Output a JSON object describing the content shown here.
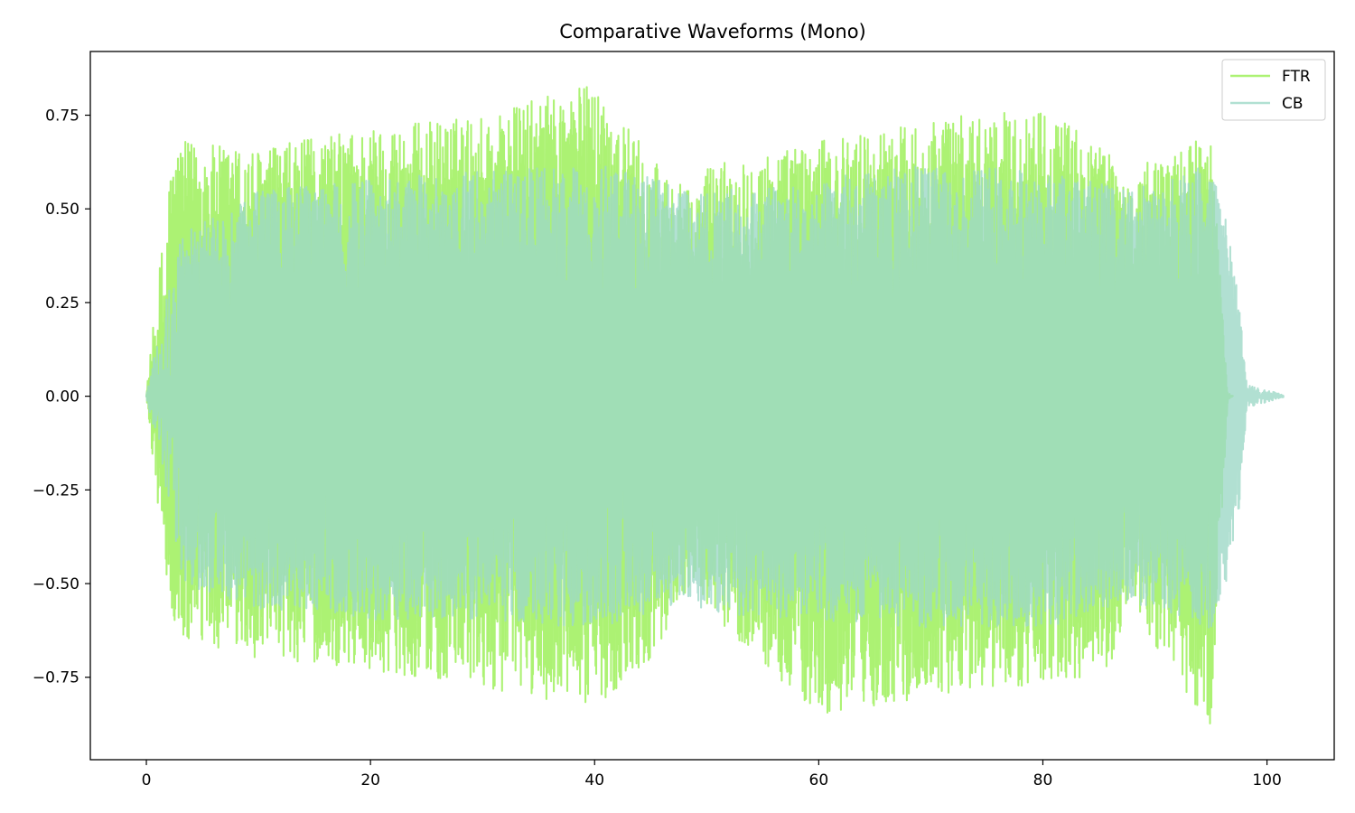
{
  "chart_data": {
    "type": "line",
    "title": "Comparative Waveforms (Mono)",
    "xlabel": "",
    "ylabel": "",
    "xlim": [
      -5,
      106
    ],
    "ylim": [
      -0.97,
      0.92
    ],
    "x_ticks": [
      0,
      20,
      40,
      60,
      80,
      100
    ],
    "x_tick_labels": [
      "0",
      "20",
      "40",
      "60",
      "80",
      "100"
    ],
    "y_ticks": [
      0.75,
      0.5,
      0.25,
      0.0,
      -0.25,
      -0.5,
      -0.75
    ],
    "y_tick_labels": [
      "0.75",
      "0.50",
      "0.25",
      "0.00",
      "−0.25",
      "−0.50",
      "−0.75"
    ],
    "grid": false,
    "legend_position": "top-right",
    "series": [
      {
        "name": "FTR",
        "color": "#9ef05a",
        "opacity": 0.85,
        "start": 0.0,
        "end": 97.0,
        "onset": 2.0,
        "offset": 96.5,
        "envelope": {
          "x": [
            0,
            2.0,
            3.0,
            10,
            20,
            30,
            40,
            45,
            49,
            50,
            60,
            70,
            80,
            86,
            88,
            89,
            95,
            96.5,
            97.0
          ],
          "max": [
            0.01,
            0.59,
            0.68,
            0.66,
            0.72,
            0.75,
            0.84,
            0.64,
            0.53,
            0.62,
            0.68,
            0.74,
            0.77,
            0.66,
            0.55,
            0.62,
            0.7,
            0.01,
            0.0
          ],
          "min": [
            -0.01,
            -0.57,
            -0.66,
            -0.7,
            -0.73,
            -0.78,
            -0.83,
            -0.7,
            -0.48,
            -0.57,
            -0.86,
            -0.8,
            -0.77,
            -0.74,
            -0.52,
            -0.63,
            -0.89,
            -0.01,
            0.0
          ]
        }
      },
      {
        "name": "CB",
        "color": "#9ed8c7",
        "opacity": 0.8,
        "start": 0.0,
        "end": 101.5,
        "onset": 3.0,
        "offset": 98.2,
        "envelope": {
          "x": [
            0,
            3.0,
            10,
            20,
            30,
            40,
            48,
            50,
            60,
            70,
            80,
            88,
            95,
            96.5,
            97.5,
            98.2,
            101.5
          ],
          "max": [
            0.005,
            0.43,
            0.55,
            0.58,
            0.6,
            0.62,
            0.56,
            0.55,
            0.58,
            0.62,
            0.6,
            0.55,
            0.62,
            0.45,
            0.25,
            0.03,
            0.005
          ],
          "min": [
            -0.005,
            -0.5,
            -0.57,
            -0.6,
            -0.6,
            -0.62,
            -0.55,
            -0.58,
            -0.6,
            -0.62,
            -0.62,
            -0.55,
            -0.62,
            -0.48,
            -0.3,
            -0.03,
            -0.005
          ]
        }
      }
    ]
  }
}
